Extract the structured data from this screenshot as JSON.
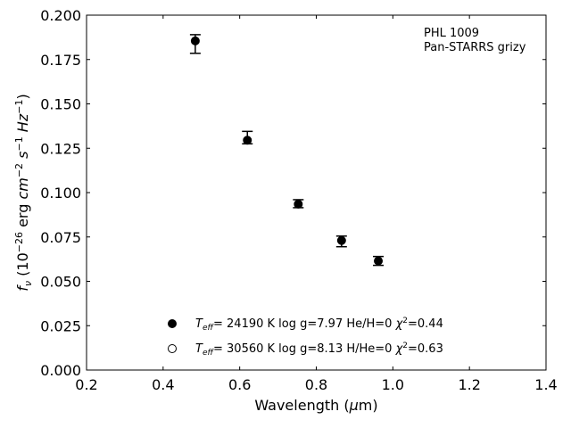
{
  "chart_data": {
    "type": "scatter",
    "title": "",
    "xlabel": "Wavelength (μm)",
    "ylabel": "fν (10⁻²⁶ erg cm⁻² s⁻¹ Hz⁻¹)",
    "xlim": [
      0.2,
      1.4
    ],
    "ylim": [
      0.0,
      0.2
    ],
    "xticks": [
      "0.2",
      "0.4",
      "0.6",
      "0.8",
      "1.0",
      "1.2",
      "1.4"
    ],
    "yticks": [
      "0.000",
      "0.025",
      "0.050",
      "0.075",
      "0.100",
      "0.125",
      "0.150",
      "0.175",
      "0.200"
    ],
    "grid": false,
    "annotation": [
      "PHL 1009",
      "Pan-STARRS grizy"
    ],
    "series": [
      {
        "name": "Teff= 24190 K  log g=7.97  He/H=0  χ²=0.44",
        "marker": "filled-circle",
        "color": "#000000",
        "points": [
          {
            "x": 0.484,
            "y": 0.1855,
            "ylo": 0.1785,
            "yhi": 0.189
          },
          {
            "x": 0.62,
            "y": 0.1295,
            "ylo": 0.1275,
            "yhi": 0.1345
          },
          {
            "x": 0.753,
            "y": 0.0935,
            "ylo": 0.0915,
            "yhi": 0.096
          },
          {
            "x": 0.866,
            "y": 0.073,
            "ylo": 0.0695,
            "yhi": 0.0755
          },
          {
            "x": 0.962,
            "y": 0.0615,
            "ylo": 0.059,
            "yhi": 0.064
          }
        ]
      },
      {
        "name": "Teff= 30560 K  log g=8.13  H/He=0  χ²=0.63",
        "marker": "open-circle",
        "color": "#000000",
        "points": []
      }
    ],
    "legend": {
      "placement": "lower-center",
      "entries": [
        {
          "marker": "filled-circle",
          "label": "Teff= 24190 K  log g=7.97  He/H=0  χ²=0.44"
        },
        {
          "marker": "open-circle",
          "label": "Teff= 30560 K  log g=8.13  H/He=0  χ²=0.63"
        }
      ]
    }
  }
}
